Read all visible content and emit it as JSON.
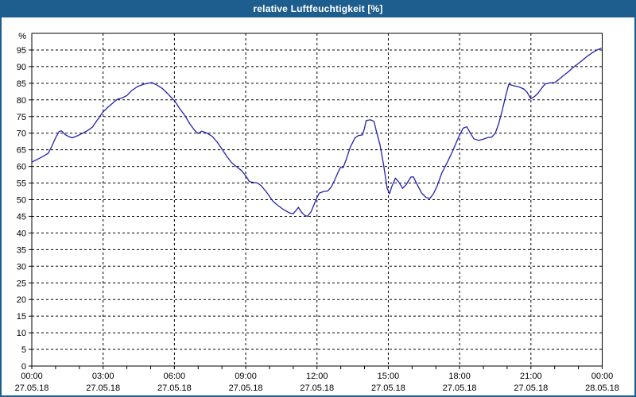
{
  "window": {
    "title": "relative Luftfeuchtigkeit [%]",
    "colors": {
      "titlebar": "#1e5e8e",
      "border": "#1e5e8e",
      "background": "#ffffff"
    }
  },
  "chart_data": {
    "type": "line",
    "title": "relative Luftfeuchtigkeit [%]",
    "unit_label": "%",
    "xlabel": "",
    "ylabel": "%",
    "ylim": [
      0,
      100
    ],
    "yticks": [
      0,
      5,
      10,
      15,
      20,
      25,
      30,
      35,
      40,
      45,
      50,
      55,
      60,
      65,
      70,
      75,
      80,
      85,
      90,
      95
    ],
    "xlim_hours": [
      0,
      24
    ],
    "xticks": [
      {
        "hour": 0,
        "time": "00:00",
        "date": "27.05.18"
      },
      {
        "hour": 3,
        "time": "03:00",
        "date": "27.05.18"
      },
      {
        "hour": 6,
        "time": "06:00",
        "date": "27.05.18"
      },
      {
        "hour": 9,
        "time": "09:00",
        "date": "27.05.18"
      },
      {
        "hour": 12,
        "time": "12:00",
        "date": "27.05.18"
      },
      {
        "hour": 15,
        "time": "15:00",
        "date": "27.05.18"
      },
      {
        "hour": 18,
        "time": "18:00",
        "date": "27.05.18"
      },
      {
        "hour": 21,
        "time": "21:00",
        "date": "27.05.18"
      },
      {
        "hour": 24,
        "time": "00:00",
        "date": "28.05.18"
      }
    ],
    "minor_tick_hours": 1,
    "grid": "dashed",
    "legend": "none",
    "colors": {
      "line": "#2222b2",
      "grid": "#000000",
      "text": "#000000"
    },
    "series": [
      {
        "name": "relative Luftfeuchtigkeit",
        "points": [
          [
            0.0,
            61.3
          ],
          [
            0.25,
            62.2
          ],
          [
            0.5,
            63.1
          ],
          [
            0.7,
            64.0
          ],
          [
            0.85,
            66.2
          ],
          [
            1.0,
            68.6
          ],
          [
            1.15,
            70.5
          ],
          [
            1.25,
            70.7
          ],
          [
            1.4,
            69.6
          ],
          [
            1.55,
            69.0
          ],
          [
            1.7,
            68.6
          ],
          [
            1.95,
            69.3
          ],
          [
            2.15,
            70.0
          ],
          [
            2.35,
            70.8
          ],
          [
            2.55,
            71.8
          ],
          [
            2.75,
            73.9
          ],
          [
            3.0,
            76.4
          ],
          [
            3.2,
            77.8
          ],
          [
            3.45,
            79.3
          ],
          [
            3.6,
            80.2
          ],
          [
            3.8,
            80.6
          ],
          [
            4.0,
            81.3
          ],
          [
            4.2,
            82.8
          ],
          [
            4.45,
            84.0
          ],
          [
            4.7,
            84.7
          ],
          [
            4.9,
            85.0
          ],
          [
            5.05,
            85.2
          ],
          [
            5.25,
            84.5
          ],
          [
            5.5,
            83.4
          ],
          [
            5.7,
            82.0
          ],
          [
            5.9,
            80.5
          ],
          [
            6.0,
            79.8
          ],
          [
            6.2,
            77.6
          ],
          [
            6.45,
            75.2
          ],
          [
            6.65,
            72.8
          ],
          [
            6.85,
            70.8
          ],
          [
            7.0,
            69.9
          ],
          [
            7.15,
            70.6
          ],
          [
            7.35,
            70.1
          ],
          [
            7.6,
            69.0
          ],
          [
            7.8,
            67.3
          ],
          [
            8.0,
            65.2
          ],
          [
            8.2,
            63.1
          ],
          [
            8.4,
            61.2
          ],
          [
            8.6,
            60.0
          ],
          [
            8.8,
            58.9
          ],
          [
            9.0,
            57.2
          ],
          [
            9.15,
            55.5
          ],
          [
            9.3,
            55.2
          ],
          [
            9.5,
            55.0
          ],
          [
            9.65,
            54.2
          ],
          [
            9.85,
            52.5
          ],
          [
            10.0,
            51.0
          ],
          [
            10.15,
            49.5
          ],
          [
            10.35,
            48.3
          ],
          [
            10.6,
            47.0
          ],
          [
            10.85,
            46.0
          ],
          [
            11.0,
            45.8
          ],
          [
            11.1,
            46.6
          ],
          [
            11.22,
            47.7
          ],
          [
            11.35,
            46.2
          ],
          [
            11.5,
            45.2
          ],
          [
            11.6,
            45.0
          ],
          [
            11.75,
            46.4
          ],
          [
            11.9,
            49.0
          ],
          [
            12.0,
            50.7
          ],
          [
            12.1,
            52.0
          ],
          [
            12.3,
            52.5
          ],
          [
            12.45,
            52.6
          ],
          [
            12.6,
            53.8
          ],
          [
            12.75,
            56.0
          ],
          [
            12.9,
            58.5
          ],
          [
            13.0,
            59.8
          ],
          [
            13.1,
            59.6
          ],
          [
            13.25,
            62.5
          ],
          [
            13.4,
            65.8
          ],
          [
            13.6,
            68.6
          ],
          [
            13.75,
            69.3
          ],
          [
            13.92,
            69.5
          ],
          [
            14.0,
            71.5
          ],
          [
            14.07,
            73.8
          ],
          [
            14.25,
            74.0
          ],
          [
            14.4,
            73.5
          ],
          [
            14.5,
            70.5
          ],
          [
            14.65,
            66.5
          ],
          [
            14.8,
            60.5
          ],
          [
            14.95,
            53.5
          ],
          [
            15.05,
            51.8
          ],
          [
            15.15,
            54.0
          ],
          [
            15.3,
            56.5
          ],
          [
            15.45,
            55.2
          ],
          [
            15.6,
            53.4
          ],
          [
            15.75,
            54.5
          ],
          [
            15.95,
            56.8
          ],
          [
            16.05,
            56.9
          ],
          [
            16.2,
            54.8
          ],
          [
            16.4,
            52.0
          ],
          [
            16.6,
            50.6
          ],
          [
            16.75,
            50.4
          ],
          [
            16.9,
            51.8
          ],
          [
            17.05,
            54.0
          ],
          [
            17.25,
            58.0
          ],
          [
            17.5,
            61.5
          ],
          [
            17.7,
            64.5
          ],
          [
            17.85,
            67.0
          ],
          [
            18.0,
            69.4
          ],
          [
            18.15,
            71.5
          ],
          [
            18.3,
            71.9
          ],
          [
            18.45,
            70.0
          ],
          [
            18.6,
            68.3
          ],
          [
            18.8,
            67.8
          ],
          [
            19.0,
            68.2
          ],
          [
            19.2,
            68.7
          ],
          [
            19.35,
            68.8
          ],
          [
            19.5,
            70.0
          ],
          [
            19.65,
            73.0
          ],
          [
            19.8,
            77.0
          ],
          [
            19.95,
            81.5
          ],
          [
            20.07,
            84.7
          ],
          [
            20.25,
            84.3
          ],
          [
            20.5,
            83.9
          ],
          [
            20.7,
            83.3
          ],
          [
            20.85,
            82.2
          ],
          [
            21.0,
            80.3
          ],
          [
            21.15,
            81.0
          ],
          [
            21.3,
            82.0
          ],
          [
            21.45,
            83.5
          ],
          [
            21.6,
            84.8
          ],
          [
            21.8,
            85.1
          ],
          [
            22.0,
            85.2
          ],
          [
            22.15,
            86.0
          ],
          [
            22.35,
            87.2
          ],
          [
            22.55,
            88.3
          ],
          [
            22.75,
            89.6
          ],
          [
            22.95,
            90.7
          ],
          [
            23.15,
            91.8
          ],
          [
            23.35,
            93.0
          ],
          [
            23.55,
            94.0
          ],
          [
            23.75,
            94.9
          ],
          [
            23.95,
            95.5
          ]
        ]
      }
    ]
  }
}
